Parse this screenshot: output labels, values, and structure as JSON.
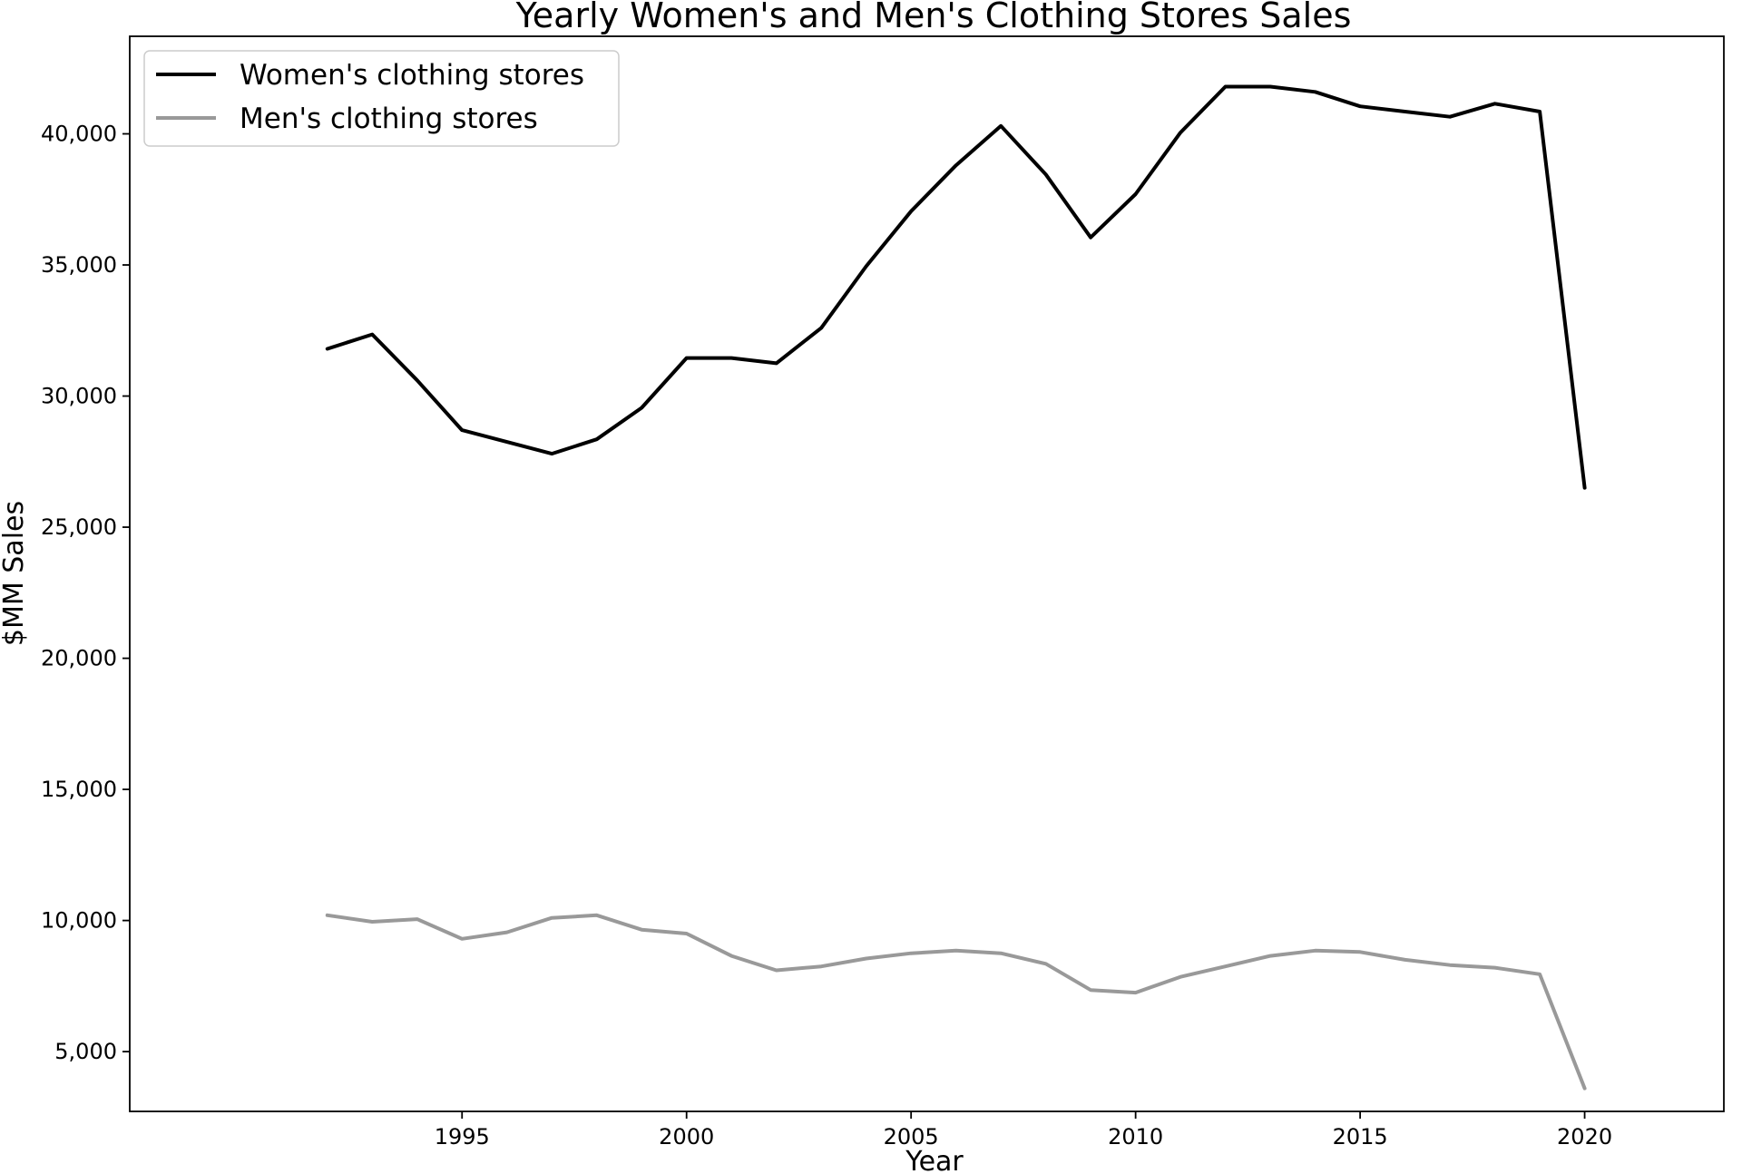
{
  "chart_data": {
    "type": "line",
    "title": "Yearly Women's and Men's Clothing Stores Sales",
    "xlabel": "Year",
    "ylabel": "$MM Sales",
    "xlim": [
      1987.6,
      2023.1
    ],
    "ylim": [
      2720,
      43720
    ],
    "xticks": [
      1995,
      2000,
      2005,
      2010,
      2015,
      2020
    ],
    "yticks": [
      5000,
      10000,
      15000,
      20000,
      25000,
      30000,
      35000,
      40000
    ],
    "ytick_labels": [
      "5,000",
      "10,000",
      "15,000",
      "20,000",
      "25,000",
      "30,000",
      "35,000",
      "40,000"
    ],
    "grid": false,
    "legend_position": "top-left",
    "x": [
      1992,
      1993,
      1994,
      1995,
      1996,
      1997,
      1998,
      1999,
      2000,
      2001,
      2002,
      2003,
      2004,
      2005,
      2006,
      2007,
      2008,
      2009,
      2010,
      2011,
      2012,
      2013,
      2014,
      2015,
      2016,
      2017,
      2018,
      2019,
      2020
    ],
    "series": [
      {
        "name": "Women's clothing stores",
        "color": "#000000",
        "values": [
          31800,
          32350,
          30600,
          28700,
          28250,
          27800,
          28350,
          29550,
          31450,
          31450,
          31250,
          32600,
          34950,
          37050,
          38800,
          40300,
          38450,
          36050,
          37700,
          40050,
          41800,
          41800,
          41600,
          41050,
          40850,
          40650,
          41150,
          40850,
          26500
        ]
      },
      {
        "name": "Men's clothing stores",
        "color": "#999999",
        "values": [
          10200,
          9950,
          10050,
          9300,
          9550,
          10100,
          10200,
          9650,
          9500,
          8650,
          8100,
          8250,
          8550,
          8750,
          8850,
          8750,
          8350,
          7350,
          7250,
          7850,
          8250,
          8650,
          8850,
          8800,
          8500,
          8300,
          8200,
          7950,
          3600
        ]
      }
    ]
  }
}
